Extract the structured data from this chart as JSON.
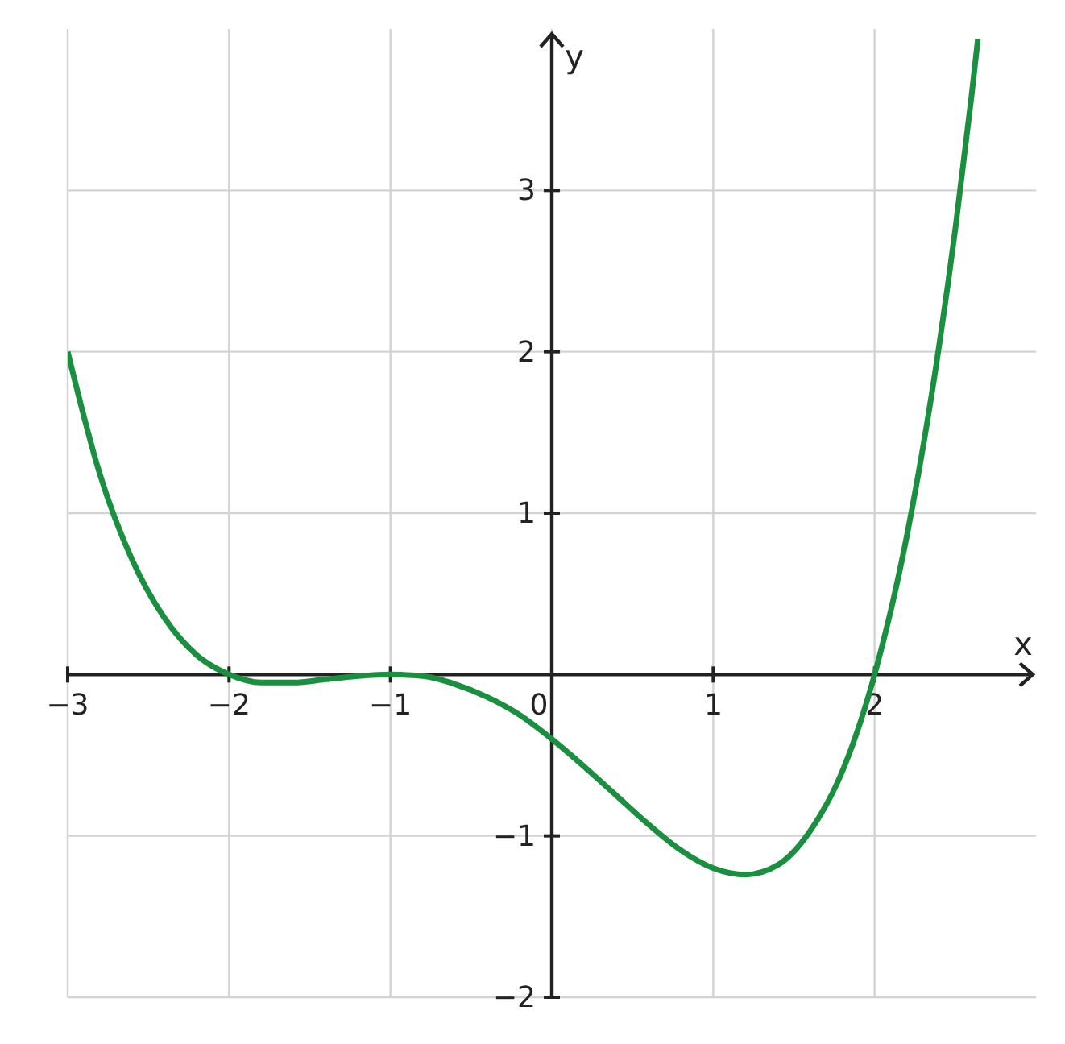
{
  "chart_data": {
    "type": "line",
    "xlabel": "x",
    "ylabel": "y",
    "x": [
      -3,
      -2.8,
      -2.6,
      -2.4,
      -2.2,
      -2,
      -1.8,
      -1.6,
      -1.4,
      -1.2,
      -1,
      -0.8,
      -0.6,
      -0.4,
      -0.2,
      0,
      0.2,
      0.4,
      0.6,
      0.8,
      1,
      1.2,
      1.4,
      1.6,
      1.8,
      2,
      2.2,
      2.4,
      2.5,
      2.6,
      2.64
    ],
    "series": [
      {
        "color": "#1a8f3f",
        "values": [
          2,
          1.24,
          0.71,
          0.35,
          0.12,
          0,
          -0.05,
          -0.05,
          -0.03,
          -0.01,
          0,
          -0.01,
          -0.06,
          -0.14,
          -0.25,
          -0.4,
          -0.57,
          -0.75,
          -0.93,
          -1.09,
          -1.2,
          -1.24,
          -1.18,
          -0.97,
          -0.6,
          0,
          0.86,
          2.04,
          2.76,
          3.58,
          3.94
        ]
      }
    ],
    "xlim": [
      -3,
      3
    ],
    "ylim": [
      -2,
      4
    ],
    "xticks": [
      {
        "value": -3,
        "label": "−3"
      },
      {
        "value": -2,
        "label": "−2"
      },
      {
        "value": -1,
        "label": "−1"
      },
      0,
      1,
      2
    ],
    "yticks": [
      {
        "value": -2,
        "label": "−2"
      },
      {
        "value": -1,
        "label": "−1"
      },
      1,
      2,
      3
    ],
    "grid": true,
    "line_style": "solid"
  }
}
